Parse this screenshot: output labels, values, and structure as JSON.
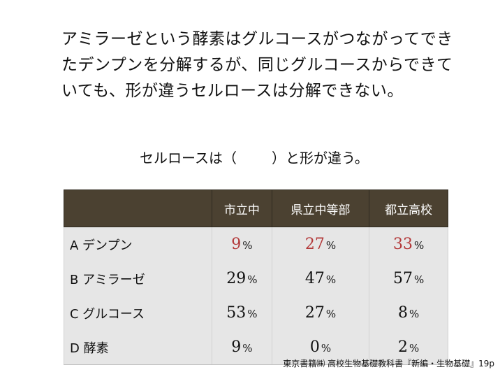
{
  "paragraph": {
    "lines": [
      "アミラーゼという酵素はグルコースがつながってでき",
      "たデンプンを分解するが、同じグルコースからできて",
      "いても、形が違うセルロースは分解できない。"
    ]
  },
  "question": {
    "prefix": "セルロースは（",
    "suffix": "）と形が違う。"
  },
  "table": {
    "headers": [
      "",
      "市立中",
      "県立中等部",
      "都立高校"
    ],
    "percent_sign": "%",
    "rows": [
      {
        "label": "A デンプン",
        "values": [
          "9",
          "27",
          "33"
        ],
        "highlight": true
      },
      {
        "label": "B アミラーゼ",
        "values": [
          "29",
          "47",
          "57"
        ],
        "highlight": false
      },
      {
        "label": "C グルコース",
        "values": [
          "53",
          "27",
          "8"
        ],
        "highlight": false
      },
      {
        "label": "D 酵素",
        "values": [
          "9",
          "0",
          "2"
        ],
        "highlight": false
      }
    ],
    "highlight_color": "#b3393a"
  },
  "source": "東京書籍㈱ 高校生物基礎教科書『新編・生物基礎』19p"
}
